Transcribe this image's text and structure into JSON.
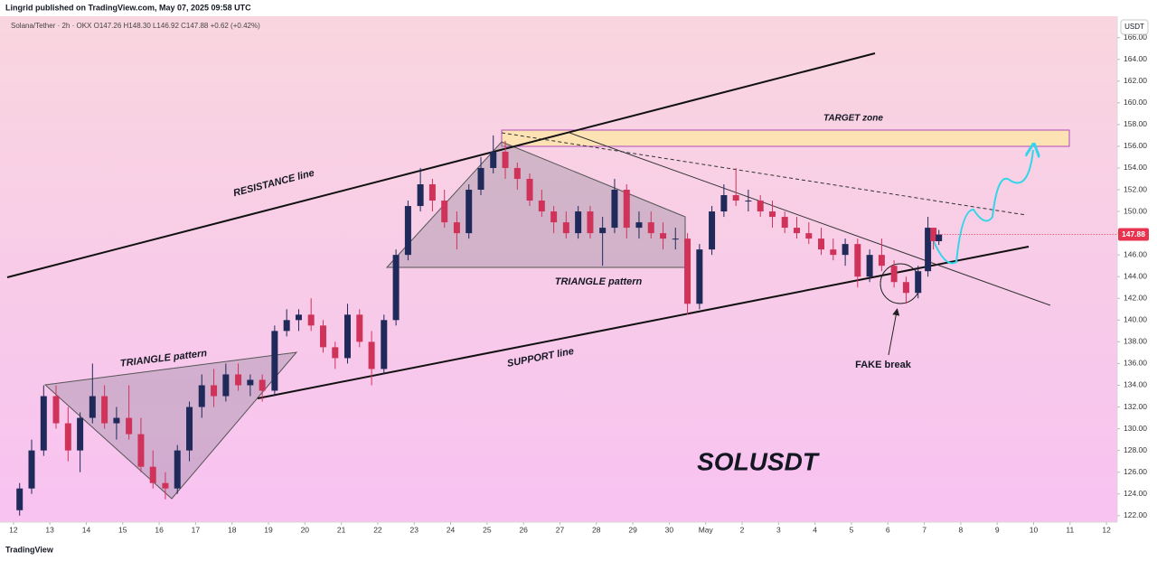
{
  "header": {
    "publisher": "Lingrid published on TradingView.com, May 07, 2025 09:58 UTC",
    "symbol_line": "Solana/Tether · 2h · OKX  O147.26 H148.30 L146.92 C147.88 +0.62 (+0.42%)",
    "currency": "USDT"
  },
  "footer": {
    "brand": "TradingView"
  },
  "chart_data": {
    "type": "candlestick",
    "title": "SOLUSDT",
    "annotations": {
      "resistance": "RESISTANCE line",
      "support": "SUPPORT line",
      "triangle_1": "TRIANGLE pattern",
      "triangle_2": "TRIANGLE pattern",
      "target": "TARGET zone",
      "fake_break": "FAKE break"
    },
    "up_color": "#1f2a5a",
    "down_color": "#d0335a",
    "last_price_label": "147.88",
    "last_price_color": "#e8334f",
    "xlim": [
      -0.17,
      30.27
    ],
    "ylim": [
      121.4,
      167.8
    ],
    "xticks": [
      {
        "value": 0,
        "label": "12"
      },
      {
        "value": 1,
        "label": "13"
      },
      {
        "value": 2,
        "label": "14"
      },
      {
        "value": 3,
        "label": "15"
      },
      {
        "value": 4,
        "label": "16"
      },
      {
        "value": 5,
        "label": "17"
      },
      {
        "value": 6,
        "label": "18"
      },
      {
        "value": 7,
        "label": "19"
      },
      {
        "value": 8,
        "label": "20"
      },
      {
        "value": 9,
        "label": "21"
      },
      {
        "value": 10,
        "label": "22"
      },
      {
        "value": 11,
        "label": "23"
      },
      {
        "value": 12,
        "label": "24"
      },
      {
        "value": 13,
        "label": "25"
      },
      {
        "value": 14,
        "label": "26"
      },
      {
        "value": 15,
        "label": "27"
      },
      {
        "value": 16,
        "label": "28"
      },
      {
        "value": 17,
        "label": "29"
      },
      {
        "value": 18,
        "label": "30"
      },
      {
        "value": 19,
        "label": "May"
      },
      {
        "value": 20,
        "label": "2"
      },
      {
        "value": 21,
        "label": "3"
      },
      {
        "value": 22,
        "label": "4"
      },
      {
        "value": 23,
        "label": "5"
      },
      {
        "value": 24,
        "label": "6"
      },
      {
        "value": 25,
        "label": "7"
      },
      {
        "value": 26,
        "label": "8"
      },
      {
        "value": 27,
        "label": "9"
      },
      {
        "value": 28,
        "label": "10"
      },
      {
        "value": 29,
        "label": "11"
      },
      {
        "value": 30,
        "label": "12"
      }
    ],
    "yticks": [
      {
        "value": 122,
        "label": "122.00"
      },
      {
        "value": 124,
        "label": "124.00"
      },
      {
        "value": 126,
        "label": "126.00"
      },
      {
        "value": 128,
        "label": "128.00"
      },
      {
        "value": 130,
        "label": "130.00"
      },
      {
        "value": 132,
        "label": "132.00"
      },
      {
        "value": 134,
        "label": "134.00"
      },
      {
        "value": 136,
        "label": "136.00"
      },
      {
        "value": 138,
        "label": "138.00"
      },
      {
        "value": 140,
        "label": "140.00"
      },
      {
        "value": 142,
        "label": "142.00"
      },
      {
        "value": 144,
        "label": "144.00"
      },
      {
        "value": 146,
        "label": "146.00"
      },
      {
        "value": 148,
        "label": "148.00"
      },
      {
        "value": 150,
        "label": "150.00"
      },
      {
        "value": 152,
        "label": "152.00"
      },
      {
        "value": 154,
        "label": "154.00"
      },
      {
        "value": 156,
        "label": "156.00"
      },
      {
        "value": 158,
        "label": "158.00"
      },
      {
        "value": 160,
        "label": "160.00"
      },
      {
        "value": 162,
        "label": "162.00"
      },
      {
        "value": 164,
        "label": "164.00"
      },
      {
        "value": 166,
        "label": "166.00"
      }
    ],
    "x": [
      0.17,
      0.5,
      0.83,
      1.17,
      1.5,
      1.83,
      2.17,
      2.5,
      2.83,
      3.17,
      3.5,
      3.83,
      4.17,
      4.5,
      4.83,
      5.17,
      5.5,
      5.83,
      6.17,
      6.5,
      6.83,
      7.17,
      7.5,
      7.83,
      8.17,
      8.5,
      8.83,
      9.17,
      9.5,
      9.83,
      10.17,
      10.5,
      10.83,
      11.17,
      11.5,
      11.83,
      12.17,
      12.5,
      12.83,
      13.17,
      13.5,
      13.83,
      14.17,
      14.5,
      14.83,
      15.17,
      15.5,
      15.83,
      16.17,
      16.5,
      16.83,
      17.17,
      17.5,
      17.83,
      18.17,
      18.5,
      18.83,
      19.17,
      19.5,
      19.83,
      20.17,
      20.5,
      20.83,
      21.17,
      21.5,
      21.83,
      22.17,
      22.5,
      22.83,
      23.17,
      23.5,
      23.83,
      24.17,
      24.5,
      24.83,
      25.1,
      25.25,
      25.4
    ],
    "open": [
      122.5,
      124.5,
      128,
      133,
      130.5,
      128,
      131,
      133,
      130.5,
      131,
      129.5,
      126.5,
      125,
      124.5,
      128,
      132,
      134,
      133,
      135,
      134,
      134.5,
      133.5,
      139,
      140,
      140.5,
      139.5,
      137.5,
      136.5,
      140.5,
      138,
      135.5,
      140,
      146,
      150.5,
      152.5,
      151,
      149,
      148,
      152,
      154,
      155.5,
      154,
      153,
      151,
      150,
      149,
      148,
      150,
      148,
      148.5,
      152,
      148.5,
      149,
      148,
      147.5,
      147.5,
      141.5,
      146.5,
      150,
      151.5,
      151,
      151,
      150,
      149.5,
      148.5,
      148,
      147.5,
      146.5,
      146,
      147,
      144,
      146,
      145,
      143.5,
      142.5,
      144.5,
      148.5,
      147.26
    ],
    "high": [
      125,
      129,
      134,
      134,
      132,
      131.5,
      136,
      134,
      132,
      134,
      131,
      128,
      126,
      128.5,
      132.5,
      135,
      135.5,
      136,
      136,
      135,
      135,
      139.5,
      141,
      141,
      142,
      140,
      138,
      141.5,
      141,
      139,
      140.5,
      146.5,
      151,
      154,
      153,
      152,
      150,
      152.5,
      155,
      157,
      156.5,
      154.5,
      153.5,
      152,
      150.5,
      150,
      150.5,
      150.5,
      149.5,
      153,
      152.5,
      150,
      150,
      149,
      148.5,
      148,
      147,
      150.5,
      152.5,
      154,
      152,
      151.5,
      151,
      150,
      149.5,
      149,
      148.5,
      147.5,
      147.5,
      147.5,
      146.5,
      147.5,
      145.5,
      144,
      145,
      149.5,
      148.5,
      148.3
    ],
    "low": [
      122,
      124,
      127.5,
      130,
      127,
      126,
      130.5,
      130,
      129,
      129,
      126,
      124.5,
      123.5,
      124,
      127,
      131,
      132,
      132.5,
      133.5,
      133,
      132.5,
      133,
      138.5,
      139,
      139,
      137,
      135.5,
      136,
      137.5,
      134,
      135,
      139.5,
      145.5,
      150,
      150,
      148.5,
      146.5,
      147.5,
      151.5,
      153.5,
      153,
      152,
      150.5,
      149.5,
      148,
      147.5,
      147.5,
      147.5,
      145,
      148,
      147.5,
      147.5,
      147.5,
      146.5,
      146.5,
      140.5,
      141,
      146,
      149.5,
      150.5,
      150,
      149.5,
      148.5,
      148,
      147.5,
      147,
      146,
      145.5,
      145,
      143,
      143.5,
      144.5,
      143,
      141.5,
      142,
      144,
      146.5,
      146.92
    ],
    "close": [
      124.5,
      128,
      133,
      130.5,
      128,
      131,
      133,
      130.5,
      131,
      129.5,
      126.5,
      125,
      124.5,
      128,
      132,
      134,
      133,
      135,
      134,
      134.5,
      133.5,
      139,
      140,
      140.5,
      139.5,
      137.5,
      136.5,
      140.5,
      138,
      135.5,
      140,
      146,
      150.5,
      152.5,
      151,
      149,
      148,
      152,
      154,
      155.5,
      154,
      153,
      151,
      150,
      149,
      148,
      150,
      148,
      148.5,
      152,
      148.5,
      149,
      148,
      147.5,
      147.5,
      141.5,
      146.5,
      150,
      151.5,
      151,
      151,
      150,
      149.5,
      148.5,
      148,
      147.5,
      146.5,
      146,
      147,
      144,
      146,
      145,
      143.5,
      142.5,
      144.5,
      148.5,
      147.26,
      147.88
    ]
  }
}
